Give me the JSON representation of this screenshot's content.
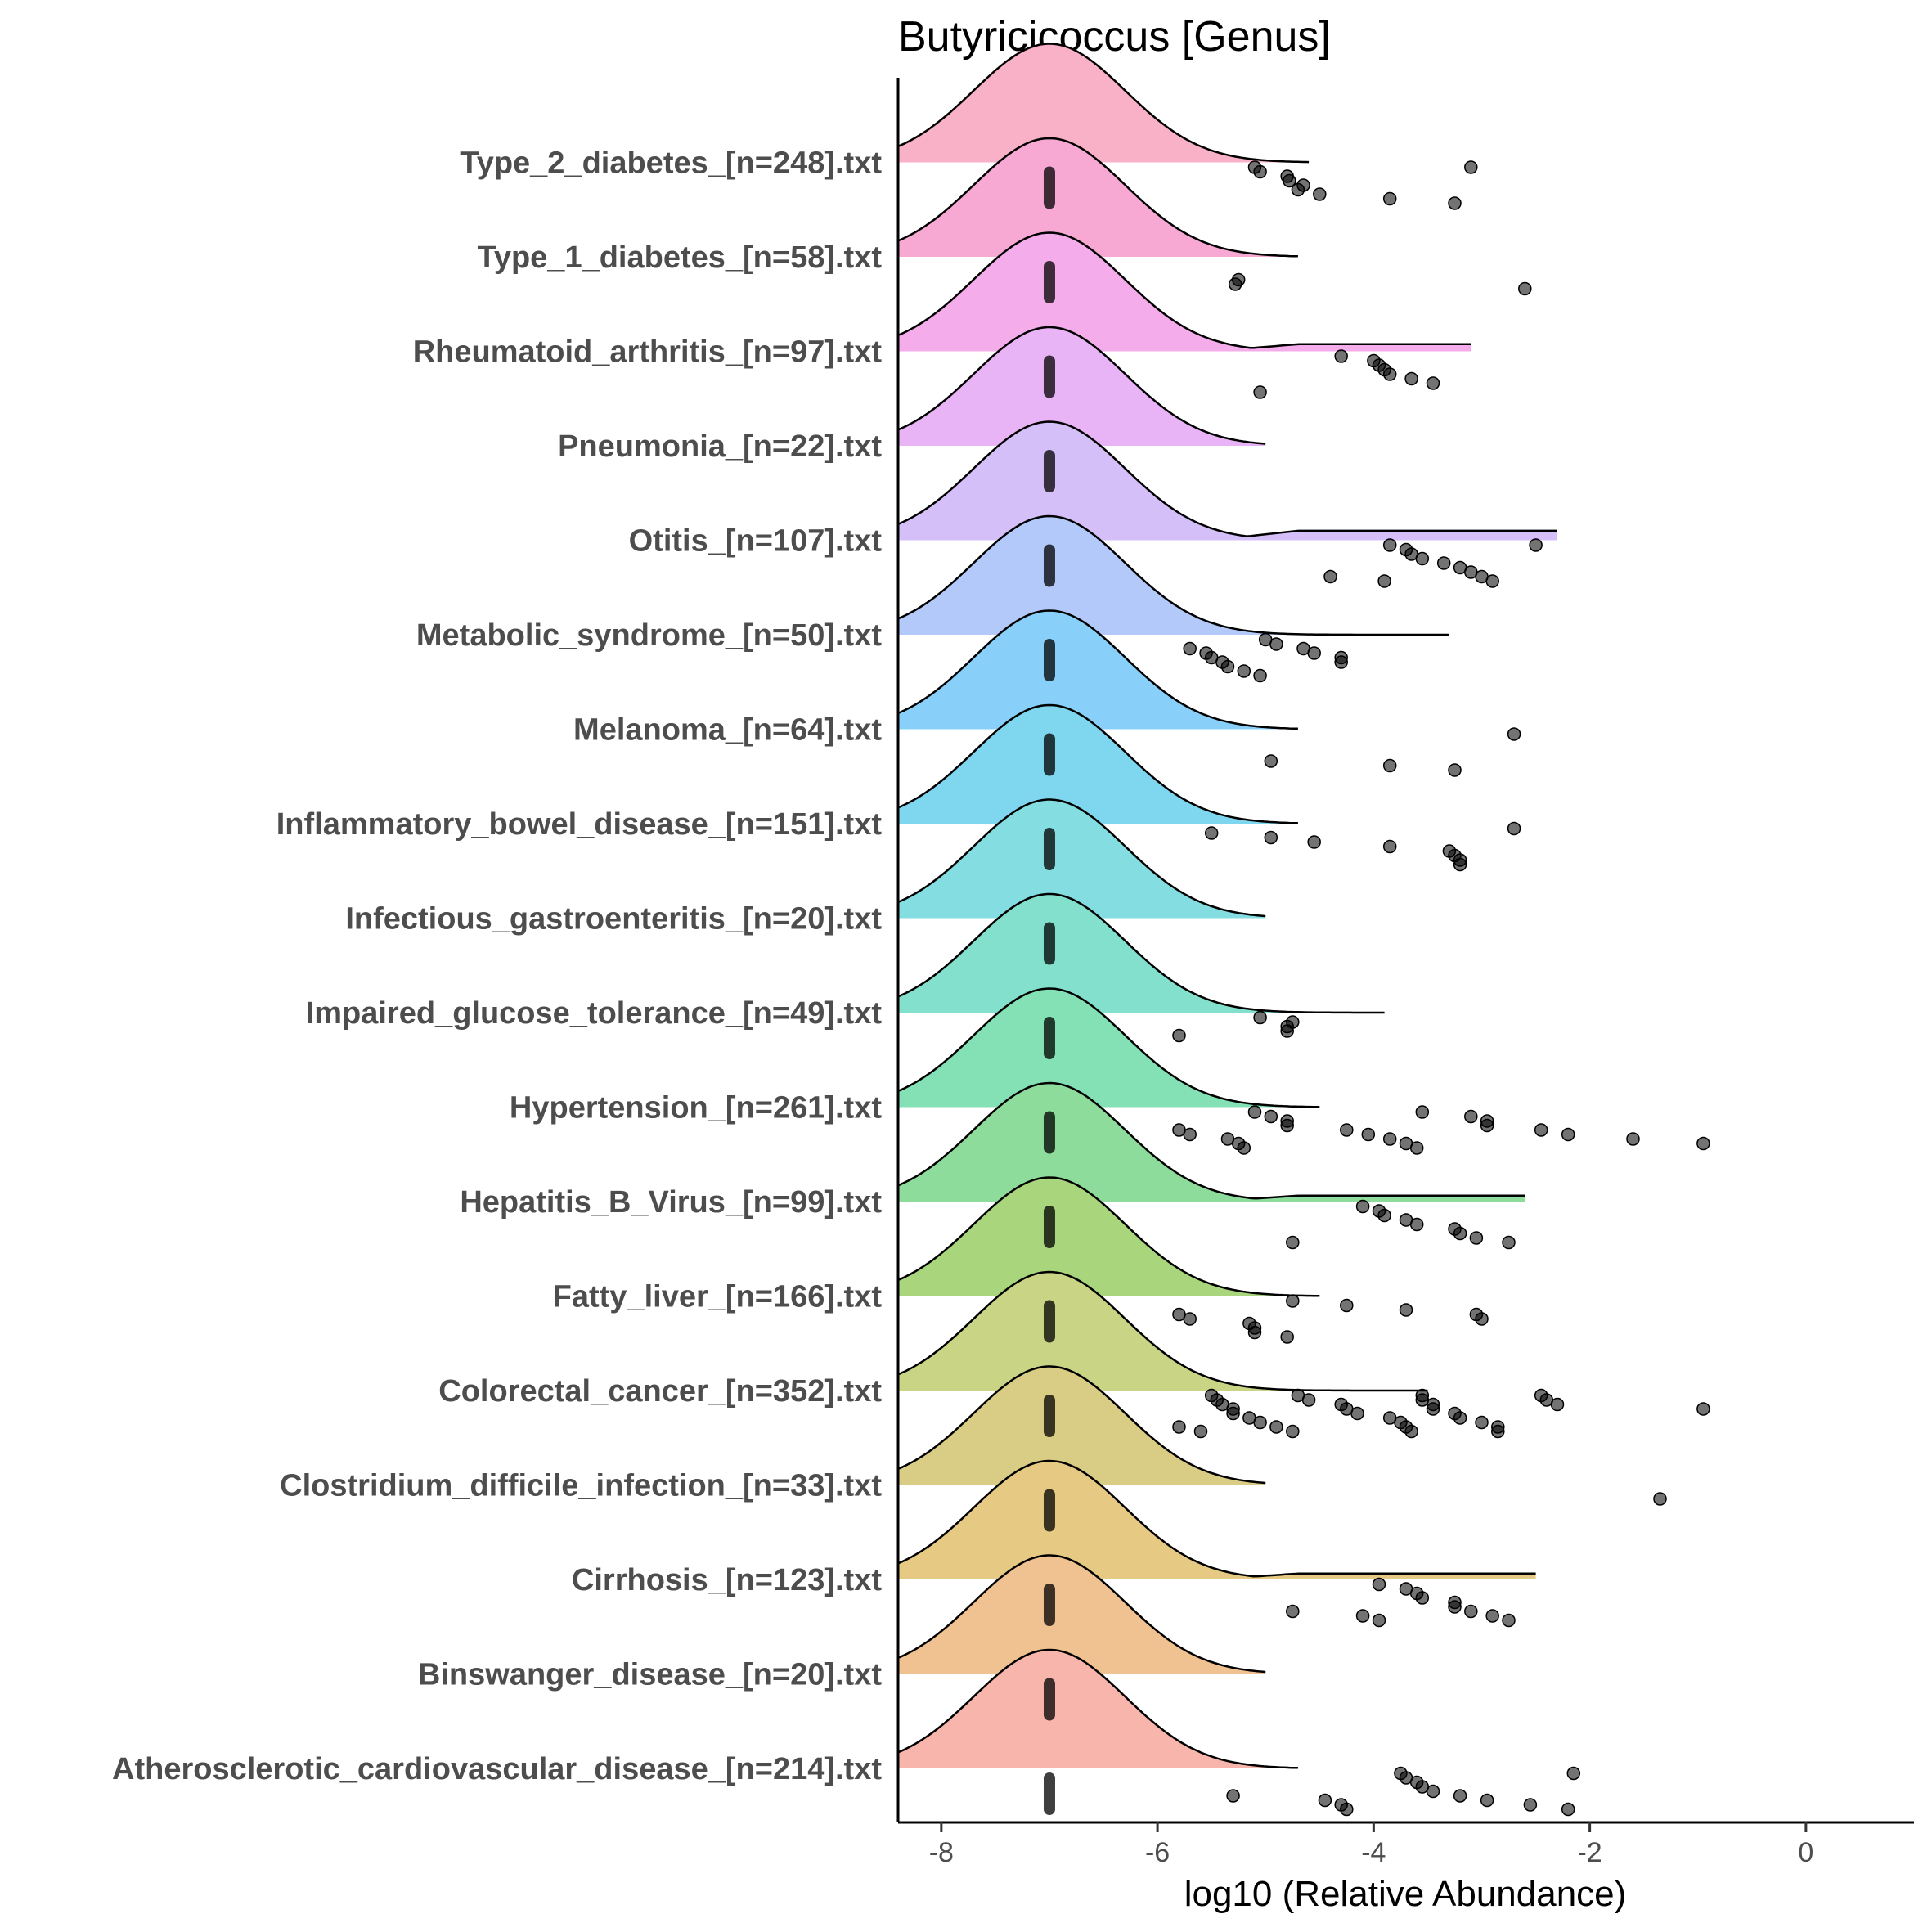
{
  "chart_data": {
    "type": "raincloud",
    "title": "Butyricicoccus [Genus]",
    "xlabel": "log10 (Relative Abundance)",
    "ylabel": "",
    "xlim": [
      -8.4,
      1.0
    ],
    "xticks": [
      -8,
      -6,
      -4,
      -2,
      0
    ],
    "xtick_labels": [
      "-8",
      "-6",
      "-4",
      "-2",
      "0"
    ],
    "grid": false,
    "legend": "none",
    "baseline_value": -7,
    "groups": [
      {
        "label": "Type_2_diabetes_[n=248].txt",
        "color": "#F8B1C6",
        "tail_end": -4.6,
        "tail_height": 0.0,
        "outliers": [
          -5.1,
          -5.05,
          -4.8,
          -4.78,
          -4.65,
          -4.7,
          -4.5,
          -3.85,
          -3.25,
          -3.1
        ]
      },
      {
        "label": "Type_1_diabetes_[n=58].txt",
        "color": "#F7A8D3",
        "tail_end": -4.7,
        "tail_height": 0.0,
        "outliers": [
          -5.25,
          -5.28,
          -2.6
        ]
      },
      {
        "label": "Rheumatoid_arthritis_[n=97].txt",
        "color": "#F4ACEA",
        "tail_end": -3.1,
        "tail_height": 0.06,
        "outliers": [
          -5.05,
          -4.3,
          -4.0,
          -3.95,
          -3.9,
          -3.85,
          -3.65,
          -3.45
        ]
      },
      {
        "label": "Pneumonia_[n=22].txt",
        "color": "#E8B4F6",
        "tail_end": -5.0,
        "tail_height": 0.0,
        "outliers": []
      },
      {
        "label": "Otitis_[n=107].txt",
        "color": "#D5BFF8",
        "tail_end": -2.3,
        "tail_height": 0.08,
        "outliers": [
          -4.4,
          -3.9,
          -3.85,
          -3.7,
          -3.65,
          -3.55,
          -3.35,
          -3.2,
          -3.1,
          -3.0,
          -2.9,
          -2.5
        ]
      },
      {
        "label": "Metabolic_syndrome_[n=50].txt",
        "color": "#B3C9FA",
        "tail_end": -3.3,
        "tail_height": 0.0,
        "outliers": [
          -5.7,
          -5.55,
          -5.5,
          -5.4,
          -5.35,
          -5.2,
          -5.05,
          -5.0,
          -4.9,
          -4.65,
          -4.55,
          -4.3,
          -4.3
        ]
      },
      {
        "label": "Melanoma_[n=64].txt",
        "color": "#88D0FA",
        "tail_end": -4.7,
        "tail_height": 0.0,
        "outliers": [
          -4.95,
          -3.85,
          -3.25,
          -2.7
        ]
      },
      {
        "label": "Inflammatory_bowel_disease_[n=151].txt",
        "color": "#7FD6EF",
        "tail_end": -4.7,
        "tail_height": 0.0,
        "outliers": [
          -5.5,
          -4.95,
          -4.55,
          -3.85,
          -3.3,
          -3.25,
          -3.2,
          -3.2,
          -2.7
        ]
      },
      {
        "label": "Infectious_gastroenteritis_[n=20].txt",
        "color": "#84DDE0",
        "tail_end": -5.0,
        "tail_height": 0.0,
        "outliers": []
      },
      {
        "label": "Impaired_glucose_tolerance_[n=49].txt",
        "color": "#82E0CD",
        "tail_end": -3.9,
        "tail_height": 0.0,
        "outliers": [
          -5.05,
          -4.75,
          -4.8,
          -4.8,
          -5.8
        ]
      },
      {
        "label": "Hypertension_[n=261].txt",
        "color": "#84E0B5",
        "tail_end": -4.5,
        "tail_height": 0.0,
        "outliers": [
          -5.8,
          -5.7,
          -5.35,
          -5.25,
          -5.2,
          -5.1,
          -4.95,
          -4.8,
          -4.8,
          -4.25,
          -4.05,
          -3.85,
          -3.7,
          -3.6,
          -3.55,
          -3.1,
          -2.95,
          -2.95,
          -2.45,
          -2.2,
          -1.6,
          -0.95
        ]
      },
      {
        "label": "Hepatitis_B_Virus_[n=99].txt",
        "color": "#8EDC9B",
        "tail_end": -2.6,
        "tail_height": 0.05,
        "outliers": [
          -4.75,
          -4.1,
          -3.95,
          -3.9,
          -3.7,
          -3.6,
          -3.25,
          -3.2,
          -3.05,
          -2.75
        ]
      },
      {
        "label": "Fatty_liver_[n=166].txt",
        "color": "#A9D67C",
        "tail_end": -4.5,
        "tail_height": 0.0,
        "outliers": [
          -5.8,
          -5.7,
          -5.15,
          -5.1,
          -5.1,
          -4.8,
          -4.75,
          -4.25,
          -3.7,
          -3.05,
          -3.0
        ]
      },
      {
        "label": "Colorectal_cancer_[n=352].txt",
        "color": "#C9D584",
        "tail_end": -3.5,
        "tail_height": 0.0,
        "outliers": [
          -5.8,
          -5.6,
          -5.5,
          -5.45,
          -5.4,
          -5.3,
          -5.3,
          -5.15,
          -5.05,
          -4.9,
          -4.75,
          -4.7,
          -4.6,
          -4.3,
          -4.25,
          -4.15,
          -3.85,
          -3.75,
          -3.7,
          -3.65,
          -3.55,
          -3.55,
          -3.45,
          -3.45,
          -3.25,
          -3.2,
          -3.0,
          -2.85,
          -2.85,
          -2.45,
          -2.4,
          -2.3,
          -0.95
        ]
      },
      {
        "label": "Clostridium_difficile_infection_[n=33].txt",
        "color": "#D9CC84",
        "tail_end": -5.0,
        "tail_height": 0.0,
        "outliers": [
          -1.35
        ]
      },
      {
        "label": "Cirrhosis_[n=123].txt",
        "color": "#E6C982",
        "tail_end": -2.5,
        "tail_height": 0.05,
        "outliers": [
          -4.75,
          -4.1,
          -3.95,
          -3.95,
          -3.7,
          -3.6,
          -3.55,
          -3.25,
          -3.25,
          -3.1,
          -2.9,
          -2.75
        ]
      },
      {
        "label": "Binswanger_disease_[n=20].txt",
        "color": "#F0C191",
        "tail_end": -5.0,
        "tail_height": 0.0,
        "outliers": []
      },
      {
        "label": "Atherosclerotic_cardiovascular_disease_[n=214].txt",
        "color": "#F7B5AC",
        "tail_end": -4.7,
        "tail_height": 0.0,
        "outliers": [
          -5.3,
          -4.45,
          -4.3,
          -4.25,
          -3.75,
          -3.7,
          -3.6,
          -3.55,
          -3.45,
          -3.2,
          -2.95,
          -2.55,
          -2.2,
          -2.15
        ]
      }
    ]
  }
}
